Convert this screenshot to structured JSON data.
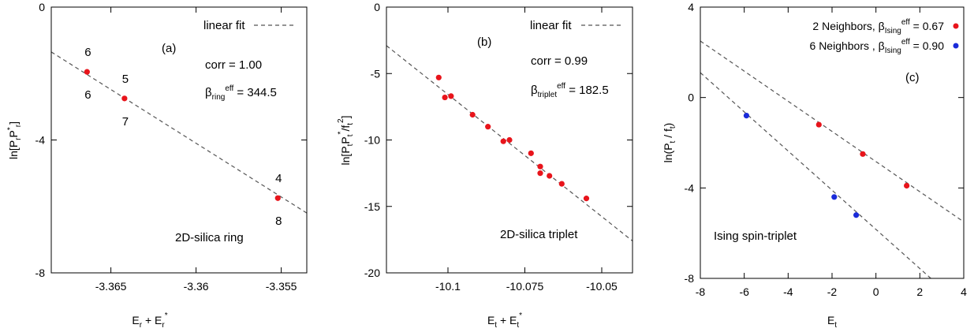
{
  "chart_data": [
    {
      "type": "scatter",
      "panel_label": "(a)",
      "xlabel": {
        "base": "E",
        "sub1": "r",
        "mid": " + E",
        "sub2": "r",
        "sup": "*"
      },
      "ylabel": {
        "pre": "ln[P",
        "sub1": "r",
        "mid": "P",
        "sup": "*",
        "sub2": "r",
        "post": "]"
      },
      "xlim": [
        -3.3685,
        -3.3535
      ],
      "ylim": [
        -8,
        0
      ],
      "xticks": [
        -3.365,
        -3.36,
        -3.355
      ],
      "xtick_labels": [
        "-3.365",
        "-3.36",
        "-3.355"
      ],
      "yticks": [
        -8,
        -4,
        0
      ],
      "ytick_labels": [
        "-8",
        "-4",
        "0"
      ],
      "series": [
        {
          "color": "#e8141b",
          "points": [
            {
              "x": -3.3664,
              "y": -1.95,
              "top": "6",
              "bottom": "6"
            },
            {
              "x": -3.3642,
              "y": -2.75,
              "top": "5",
              "bottom": "7"
            },
            {
              "x": -3.3552,
              "y": -5.75,
              "top": "4",
              "bottom": "8"
            }
          ]
        }
      ],
      "fit_lines": [
        {
          "x": [
            -3.3685,
            -3.3535
          ],
          "y": [
            -1.35,
            -6.2
          ]
        }
      ],
      "legend": {
        "label": "linear fit"
      },
      "corr": "corr = 1.00",
      "beta": {
        "pre": "β",
        "sub": "ring",
        "sup": "eff",
        "post": " = 344.5"
      },
      "title": "2D-silica ring"
    },
    {
      "type": "scatter",
      "panel_label": "(b)",
      "xlabel": {
        "base": "E",
        "sub1": "t",
        "mid": " + E",
        "sub2": "t",
        "sup": "*"
      },
      "ylabel": {
        "pre": "ln[P",
        "sub1": "t",
        "mid": "P",
        "sub2": "t",
        "sup": "*",
        "slash": "/f",
        "sub3": "t",
        "sup2": "2",
        "post": "]"
      },
      "xlim": [
        -10.12,
        -10.04
      ],
      "ylim": [
        -20,
        0
      ],
      "xticks": [
        -10.1,
        -10.075,
        -10.05
      ],
      "xtick_labels": [
        "-10.1",
        "-10.075",
        "-10.05"
      ],
      "yticks": [
        -20,
        -15,
        -10,
        -5,
        0
      ],
      "ytick_labels": [
        "-20",
        "-15",
        "-10",
        "-5",
        "0"
      ],
      "series": [
        {
          "color": "#e8141b",
          "points": [
            {
              "x": -10.103,
              "y": -5.3
            },
            {
              "x": -10.101,
              "y": -6.8
            },
            {
              "x": -10.099,
              "y": -6.7
            },
            {
              "x": -10.092,
              "y": -8.1
            },
            {
              "x": -10.087,
              "y": -9.0
            },
            {
              "x": -10.082,
              "y": -10.1
            },
            {
              "x": -10.08,
              "y": -10.0
            },
            {
              "x": -10.073,
              "y": -11.0
            },
            {
              "x": -10.07,
              "y": -12.0
            },
            {
              "x": -10.07,
              "y": -12.5
            },
            {
              "x": -10.067,
              "y": -12.7
            },
            {
              "x": -10.063,
              "y": -13.3
            },
            {
              "x": -10.055,
              "y": -14.4
            }
          ]
        }
      ],
      "fit_lines": [
        {
          "x": [
            -10.12,
            -10.04
          ],
          "y": [
            -2.9,
            -17.6
          ]
        }
      ],
      "legend": {
        "label": "linear fit"
      },
      "corr": "corr = 0.99",
      "beta": {
        "pre": "β",
        "sub": "triplet",
        "sup": "eff",
        "post": " = 182.5"
      },
      "title": "2D-silica triplet"
    },
    {
      "type": "scatter",
      "panel_label": "(c)",
      "xlabel": {
        "base": "E",
        "sub1": "t"
      },
      "ylabel": {
        "pre": "ln(P",
        "sub1": "t",
        "mid": " / f",
        "sub2": "t",
        "post": ")"
      },
      "xlim": [
        -8,
        4
      ],
      "ylim": [
        -8,
        4
      ],
      "xticks": [
        -8,
        -6,
        -4,
        -2,
        0,
        2,
        4
      ],
      "xtick_labels": [
        "-8",
        "-6",
        "-4",
        "-2",
        "0",
        "2",
        "4"
      ],
      "yticks": [
        -8,
        -4,
        0,
        4
      ],
      "ytick_labels": [
        "-8",
        "-4",
        "0",
        "4"
      ],
      "series": [
        {
          "color": "#e8141b",
          "legend": {
            "pre": "2 Neighbors, β",
            "sub": "Ising",
            "sup": "eff",
            "post": " = 0.67"
          },
          "points": [
            {
              "x": -2.6,
              "y": -1.2
            },
            {
              "x": -0.6,
              "y": -2.5
            },
            {
              "x": 1.4,
              "y": -3.9
            }
          ]
        },
        {
          "color": "#1a2bd9",
          "legend": {
            "pre": "6 Neighbors , β",
            "sub": "Ising",
            "sup": "eff",
            "post": " = 0.90"
          },
          "points": [
            {
              "x": -5.9,
              "y": -0.8
            },
            {
              "x": -1.9,
              "y": -4.4
            },
            {
              "x": -0.9,
              "y": -5.2
            }
          ]
        }
      ],
      "fit_lines": [
        {
          "x": [
            -8,
            4
          ],
          "y": [
            2.5,
            -5.5
          ]
        },
        {
          "x": [
            -8,
            2.5
          ],
          "y": [
            1.1,
            -8
          ]
        }
      ],
      "title": "Ising spin-triplet"
    }
  ]
}
